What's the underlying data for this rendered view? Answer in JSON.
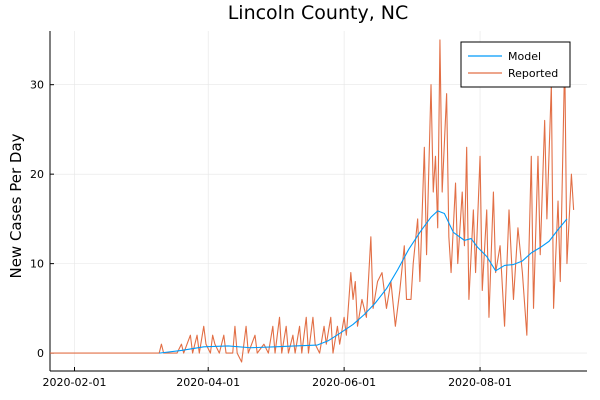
{
  "chart_data": {
    "type": "line",
    "title": "Lincoln County, NC",
    "xlabel": "",
    "ylabel": "New Cases Per Day",
    "x_range": [
      "2020-01-21",
      "2020-09-18"
    ],
    "ylim": [
      -2,
      36
    ],
    "grid": true,
    "legend_position": "top-right",
    "x_ticks": [
      "2020-02-01",
      "2020-04-01",
      "2020-06-01",
      "2020-08-01"
    ],
    "y_ticks": [
      0,
      10,
      20,
      30
    ],
    "series": [
      {
        "name": "Model",
        "color": "#009af9",
        "points": [
          [
            "2020-03-10",
            0
          ],
          [
            "2020-03-20",
            0.3
          ],
          [
            "2020-03-30",
            0.7
          ],
          [
            "2020-04-10",
            0.8
          ],
          [
            "2020-04-20",
            0.6
          ],
          [
            "2020-05-01",
            0.7
          ],
          [
            "2020-05-10",
            0.8
          ],
          [
            "2020-05-20",
            0.9
          ],
          [
            "2020-05-25",
            1.4
          ],
          [
            "2020-05-30",
            2.2
          ],
          [
            "2020-06-05",
            3.2
          ],
          [
            "2020-06-10",
            4.3
          ],
          [
            "2020-06-15",
            5.6
          ],
          [
            "2020-06-20",
            7.2
          ],
          [
            "2020-06-25",
            9.3
          ],
          [
            "2020-06-30",
            11.6
          ],
          [
            "2020-07-05",
            13.5
          ],
          [
            "2020-07-10",
            15.2
          ],
          [
            "2020-07-13",
            15.9
          ],
          [
            "2020-07-16",
            15.6
          ],
          [
            "2020-07-20",
            13.5
          ],
          [
            "2020-07-25",
            12.6
          ],
          [
            "2020-07-28",
            12.8
          ],
          [
            "2020-07-31",
            11.8
          ],
          [
            "2020-08-04",
            10.8
          ],
          [
            "2020-08-08",
            9.2
          ],
          [
            "2020-08-12",
            9.8
          ],
          [
            "2020-08-16",
            9.9
          ],
          [
            "2020-08-20",
            10.3
          ],
          [
            "2020-08-24",
            11.2
          ],
          [
            "2020-08-28",
            11.8
          ],
          [
            "2020-09-01",
            12.5
          ],
          [
            "2020-09-05",
            13.8
          ],
          [
            "2020-09-09",
            15.0
          ]
        ]
      },
      {
        "name": "Reported",
        "color": "#e26f46",
        "points": [
          [
            "2020-01-21",
            0
          ],
          [
            "2020-03-10",
            0
          ],
          [
            "2020-03-11",
            1
          ],
          [
            "2020-03-12",
            0
          ],
          [
            "2020-03-18",
            0
          ],
          [
            "2020-03-20",
            1
          ],
          [
            "2020-03-21",
            0
          ],
          [
            "2020-03-24",
            2
          ],
          [
            "2020-03-25",
            0
          ],
          [
            "2020-03-27",
            2
          ],
          [
            "2020-03-28",
            0
          ],
          [
            "2020-03-30",
            3
          ],
          [
            "2020-03-31",
            1
          ],
          [
            "2020-04-02",
            0
          ],
          [
            "2020-04-03",
            2
          ],
          [
            "2020-04-04",
            1
          ],
          [
            "2020-04-06",
            0
          ],
          [
            "2020-04-08",
            2
          ],
          [
            "2020-04-09",
            0
          ],
          [
            "2020-04-12",
            0
          ],
          [
            "2020-04-13",
            3
          ],
          [
            "2020-04-14",
            0
          ],
          [
            "2020-04-16",
            -1
          ],
          [
            "2020-04-18",
            3
          ],
          [
            "2020-04-19",
            0
          ],
          [
            "2020-04-22",
            2
          ],
          [
            "2020-04-23",
            0
          ],
          [
            "2020-04-26",
            1
          ],
          [
            "2020-04-28",
            0
          ],
          [
            "2020-04-30",
            3
          ],
          [
            "2020-05-01",
            0
          ],
          [
            "2020-05-03",
            4
          ],
          [
            "2020-05-04",
            0
          ],
          [
            "2020-05-06",
            3
          ],
          [
            "2020-05-07",
            0
          ],
          [
            "2020-05-09",
            2
          ],
          [
            "2020-05-10",
            0
          ],
          [
            "2020-05-12",
            3
          ],
          [
            "2020-05-13",
            0
          ],
          [
            "2020-05-15",
            4
          ],
          [
            "2020-05-16",
            0
          ],
          [
            "2020-05-18",
            4
          ],
          [
            "2020-05-19",
            1
          ],
          [
            "2020-05-21",
            0
          ],
          [
            "2020-05-23",
            3
          ],
          [
            "2020-05-24",
            1
          ],
          [
            "2020-05-26",
            4
          ],
          [
            "2020-05-27",
            0
          ],
          [
            "2020-05-29",
            3
          ],
          [
            "2020-05-30",
            1
          ],
          [
            "2020-06-01",
            4
          ],
          [
            "2020-06-02",
            2
          ],
          [
            "2020-06-04",
            9
          ],
          [
            "2020-06-05",
            6
          ],
          [
            "2020-06-06",
            8
          ],
          [
            "2020-06-07",
            3
          ],
          [
            "2020-06-09",
            6
          ],
          [
            "2020-06-11",
            4
          ],
          [
            "2020-06-13",
            13
          ],
          [
            "2020-06-14",
            5
          ],
          [
            "2020-06-16",
            8
          ],
          [
            "2020-06-18",
            9
          ],
          [
            "2020-06-20",
            5
          ],
          [
            "2020-06-22",
            8
          ],
          [
            "2020-06-24",
            3
          ],
          [
            "2020-06-26",
            7
          ],
          [
            "2020-06-28",
            12
          ],
          [
            "2020-06-29",
            6
          ],
          [
            "2020-07-01",
            6
          ],
          [
            "2020-07-02",
            10
          ],
          [
            "2020-07-04",
            15
          ],
          [
            "2020-07-05",
            8
          ],
          [
            "2020-07-07",
            23
          ],
          [
            "2020-07-08",
            11
          ],
          [
            "2020-07-10",
            30
          ],
          [
            "2020-07-11",
            18
          ],
          [
            "2020-07-12",
            22
          ],
          [
            "2020-07-13",
            14
          ],
          [
            "2020-07-14",
            35
          ],
          [
            "2020-07-15",
            18
          ],
          [
            "2020-07-17",
            29
          ],
          [
            "2020-07-18",
            13
          ],
          [
            "2020-07-19",
            9
          ],
          [
            "2020-07-21",
            19
          ],
          [
            "2020-07-22",
            10
          ],
          [
            "2020-07-24",
            18
          ],
          [
            "2020-07-25",
            12
          ],
          [
            "2020-07-26",
            23
          ],
          [
            "2020-07-27",
            6
          ],
          [
            "2020-07-29",
            16
          ],
          [
            "2020-07-30",
            9
          ],
          [
            "2020-08-01",
            22
          ],
          [
            "2020-08-02",
            7
          ],
          [
            "2020-08-04",
            16
          ],
          [
            "2020-08-05",
            4
          ],
          [
            "2020-08-07",
            18
          ],
          [
            "2020-08-08",
            9
          ],
          [
            "2020-08-10",
            12
          ],
          [
            "2020-08-12",
            3
          ],
          [
            "2020-08-14",
            16
          ],
          [
            "2020-08-16",
            6
          ],
          [
            "2020-08-18",
            14
          ],
          [
            "2020-08-20",
            9
          ],
          [
            "2020-08-22",
            2
          ],
          [
            "2020-08-24",
            22
          ],
          [
            "2020-08-25",
            5
          ],
          [
            "2020-08-27",
            22
          ],
          [
            "2020-08-28",
            11
          ],
          [
            "2020-08-30",
            26
          ],
          [
            "2020-08-31",
            15
          ],
          [
            "2020-09-02",
            30
          ],
          [
            "2020-09-03",
            5
          ],
          [
            "2020-09-05",
            17
          ],
          [
            "2020-09-06",
            8
          ],
          [
            "2020-09-08",
            33
          ],
          [
            "2020-09-09",
            10
          ],
          [
            "2020-09-11",
            20
          ],
          [
            "2020-09-12",
            16
          ]
        ]
      }
    ]
  }
}
